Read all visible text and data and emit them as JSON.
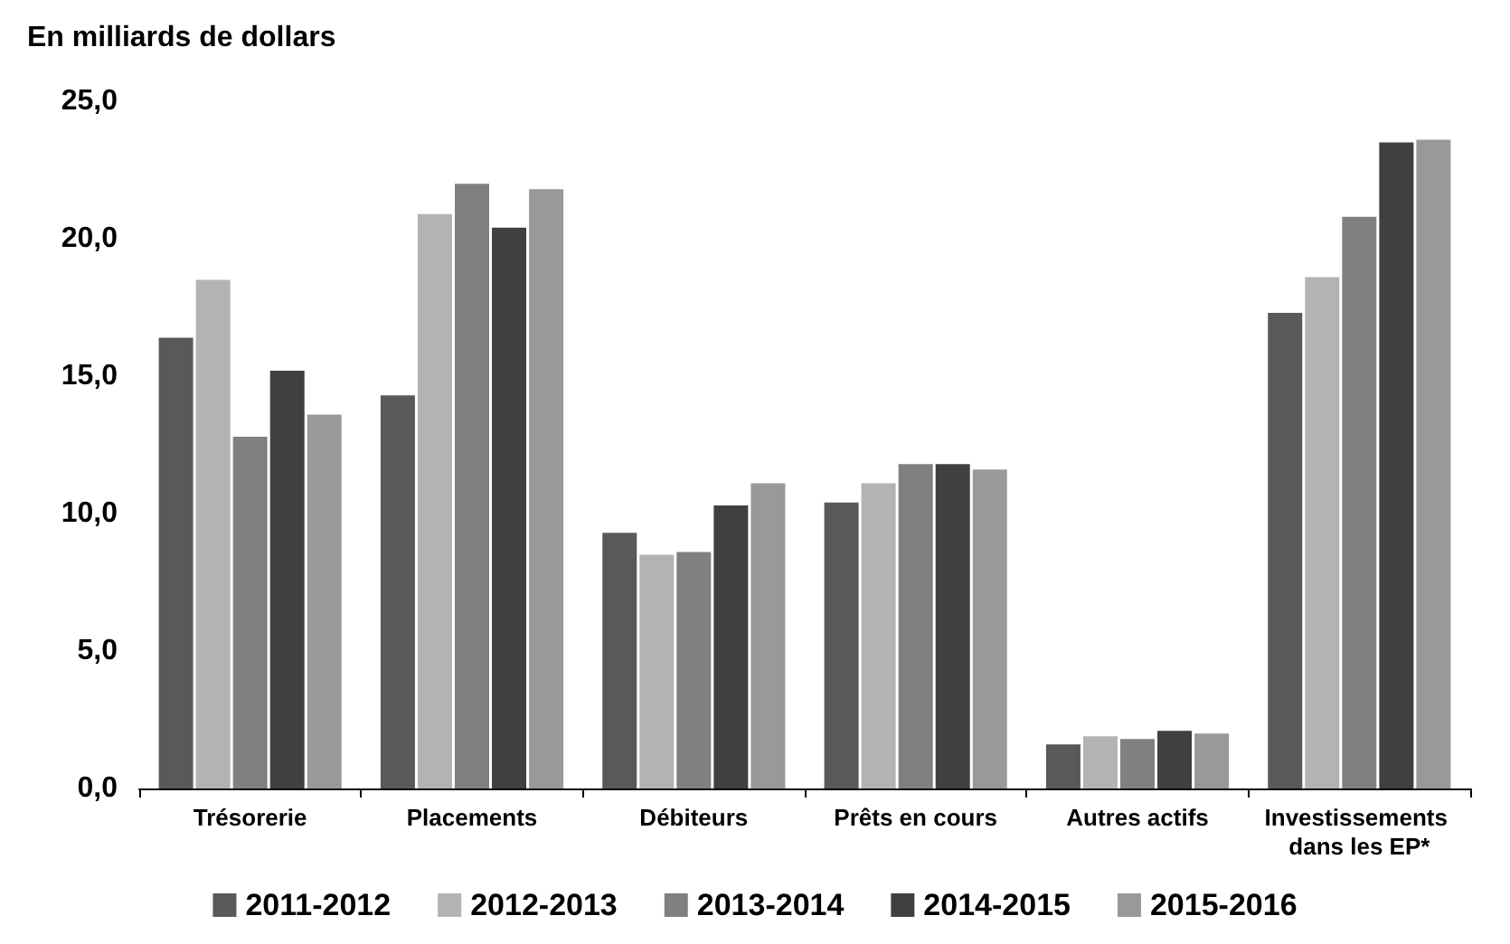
{
  "chart_data": {
    "type": "bar",
    "title": "En milliards de dollars",
    "categories": [
      "Trésorerie",
      "Placements",
      "Débiteurs",
      "Prêts en cours",
      "Autres actifs",
      "Investissements dans les EP*"
    ],
    "series": [
      {
        "name": "2011-2012",
        "color": "#595959",
        "values": [
          16.4,
          14.3,
          9.3,
          10.4,
          1.6,
          17.3
        ]
      },
      {
        "name": "2012-2013",
        "color": "#b3b3b3",
        "values": [
          18.5,
          20.9,
          8.5,
          11.1,
          1.9,
          18.6
        ]
      },
      {
        "name": "2013-2014",
        "color": "#808080",
        "values": [
          12.8,
          22.0,
          8.6,
          11.8,
          1.8,
          20.8
        ]
      },
      {
        "name": "2014-2015",
        "color": "#404040",
        "values": [
          15.2,
          20.4,
          10.3,
          11.8,
          2.1,
          23.5
        ]
      },
      {
        "name": "2015-2016",
        "color": "#999999",
        "values": [
          13.6,
          21.8,
          11.1,
          11.6,
          2.0,
          23.6
        ]
      }
    ],
    "ylim": [
      0,
      25
    ],
    "yticks": [
      {
        "value": 0,
        "label": "0,0"
      },
      {
        "value": 5,
        "label": "5,0"
      },
      {
        "value": 10,
        "label": "10,0"
      },
      {
        "value": 15,
        "label": "15,0"
      },
      {
        "value": 20,
        "label": "20,0"
      },
      {
        "value": 25,
        "label": "25,0"
      }
    ],
    "grid": false,
    "legend": "bottom"
  }
}
